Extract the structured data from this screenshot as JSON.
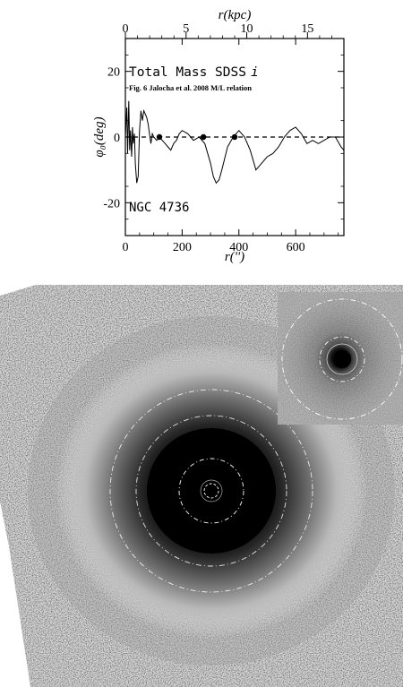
{
  "chart_data": {
    "type": "line",
    "xlabel": "r('')",
    "ylabel": "φ₀(deg)",
    "top_axis_label": "r(kpc)",
    "annotations": {
      "title": "Total Mass SDSS",
      "title_band": "i",
      "subtitle": "Fig. 6 Jalocha et al. 2008 M/L relation",
      "galaxy": "NGC 4736"
    },
    "xlim": [
      0,
      770
    ],
    "ylim": [
      -30,
      30
    ],
    "top_xlim_kpc": [
      0,
      18
    ],
    "x_ticks": [
      "0",
      "200",
      "400",
      "600"
    ],
    "x_tick_values": [
      0,
      200,
      400,
      600
    ],
    "y_ticks": [
      "-20",
      "0",
      "20"
    ],
    "y_tick_values": [
      -20,
      0,
      20
    ],
    "top_ticks": [
      "0",
      "5",
      "10",
      "15"
    ],
    "top_tick_values": [
      0,
      5,
      10,
      15
    ],
    "zero_line": 0,
    "series": [
      {
        "x": [
          0,
          5,
          8,
          12,
          15,
          18,
          22,
          25,
          28,
          32,
          35,
          40,
          45,
          50,
          55,
          60,
          65,
          70,
          75,
          80,
          85,
          90,
          95,
          100,
          110,
          120,
          130,
          140,
          150,
          160,
          170,
          180,
          190,
          200,
          220,
          240,
          260,
          280,
          300,
          310,
          320,
          330,
          340,
          360,
          380,
          400,
          420,
          440,
          460,
          480,
          500,
          520,
          540,
          560,
          580,
          600,
          620,
          640,
          660,
          680,
          700,
          720,
          740,
          760,
          770
        ],
        "y": [
          0,
          9,
          -5,
          11,
          -4,
          2,
          -6,
          3,
          -2,
          1,
          -8,
          -14,
          -12,
          2,
          8,
          5,
          8,
          7,
          6,
          4,
          1,
          -2,
          1,
          0,
          -1,
          0,
          -1,
          -2,
          -3,
          -4,
          -2,
          -1,
          1,
          2,
          1,
          -1,
          0,
          -2,
          -8,
          -12,
          -14,
          -13,
          -10,
          -3,
          0,
          2,
          0,
          -4,
          -10,
          -8,
          -6,
          -5,
          -3,
          0,
          2,
          3,
          1,
          -2,
          -1,
          -2,
          -1,
          0,
          0,
          -3,
          -4
        ]
      }
    ],
    "crossing_markers": [
      120,
      275,
      385
    ]
  },
  "image_panel": {
    "subject": "deprojected SDSS i-band image of NGC 4736 with corotation circles and inset core view"
  }
}
